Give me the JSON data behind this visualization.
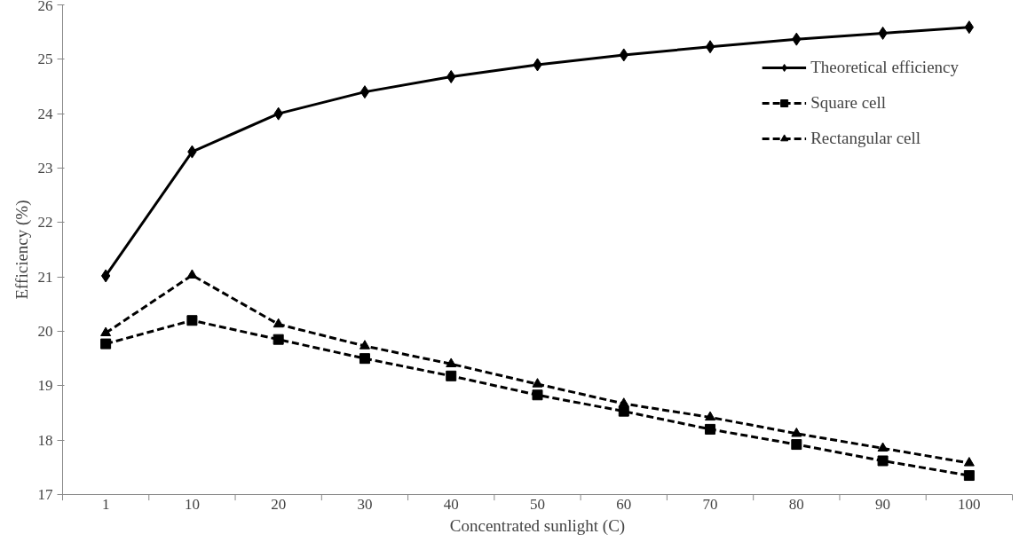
{
  "chart_data": {
    "type": "line",
    "xlabel": "Concentrated sunlight (C)",
    "ylabel": "Efficiency (%)",
    "categories": [
      "1",
      "10",
      "20",
      "30",
      "40",
      "50",
      "60",
      "70",
      "80",
      "90",
      "100"
    ],
    "ylim": [
      17,
      26
    ],
    "yticks": [
      17,
      18,
      19,
      20,
      21,
      22,
      23,
      24,
      25,
      26
    ],
    "grid": false,
    "legend": "top right",
    "series": [
      {
        "name": "Theoretical efficiency",
        "color": "#000000",
        "marker": "diamond",
        "line_style": "solid",
        "values": [
          21.02,
          23.3,
          24.0,
          24.4,
          24.68,
          24.9,
          25.08,
          25.23,
          25.37,
          25.48,
          25.59
        ]
      },
      {
        "name": "Square cell",
        "color": "#000000",
        "marker": "square",
        "line_style": "dashed",
        "values": [
          19.77,
          20.2,
          19.85,
          19.5,
          19.18,
          18.83,
          18.53,
          18.2,
          17.92,
          17.62,
          17.35
        ]
      },
      {
        "name": "Rectangular cell",
        "color": "#000000",
        "marker": "triangle",
        "line_style": "dashed",
        "values": [
          19.97,
          21.03,
          20.13,
          19.73,
          19.4,
          19.03,
          18.67,
          18.42,
          18.12,
          17.85,
          17.58
        ]
      }
    ]
  }
}
